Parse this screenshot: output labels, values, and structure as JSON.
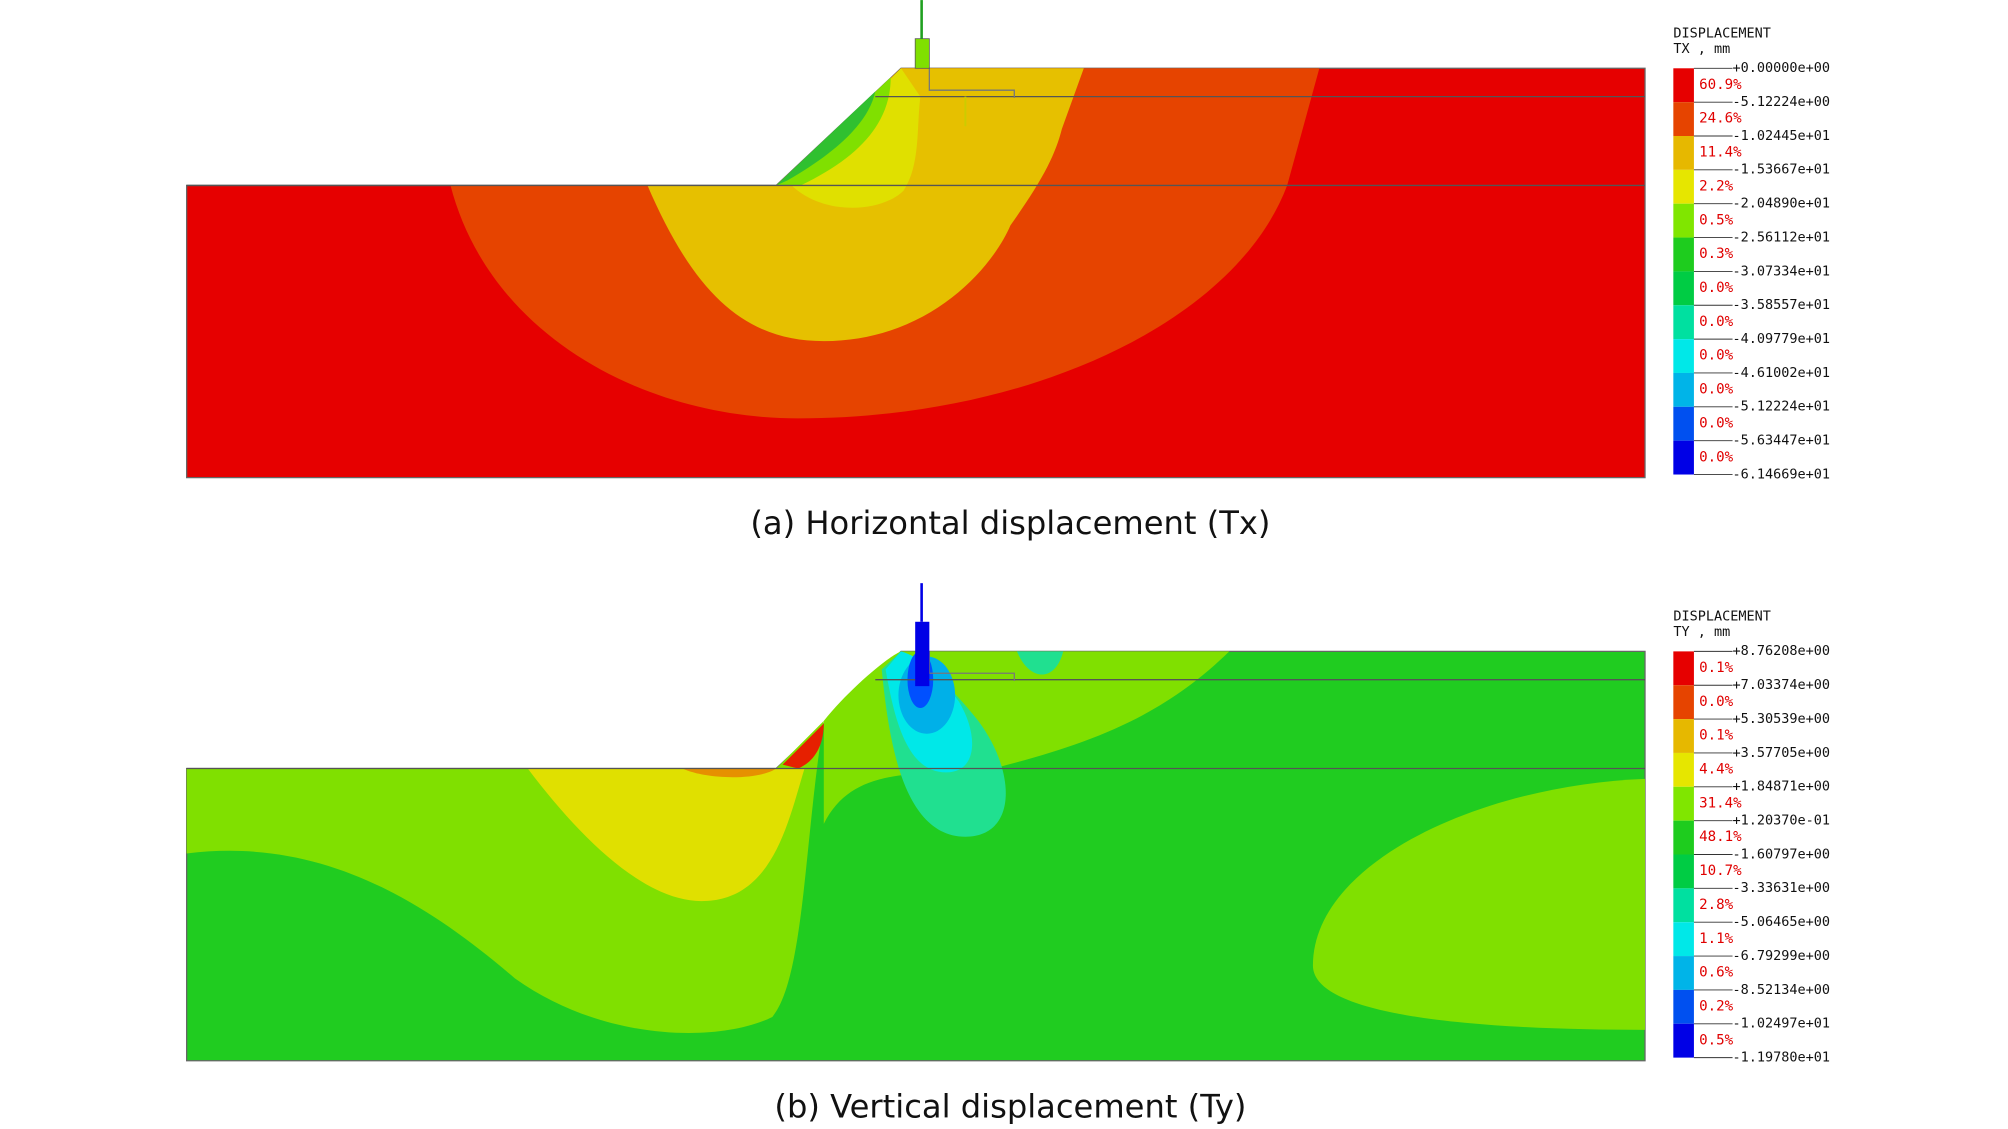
{
  "panels": [
    {
      "caption": "(a) Horizontal displacement (Tx)",
      "legend": {
        "title": "DISPLACEMENT",
        "unit": "TX , mm",
        "labels": [
          "+0.00000e+00",
          "-5.12224e+00",
          "-1.02445e+01",
          "-1.53667e+01",
          "-2.04890e+01",
          "-2.56112e+01",
          "-3.07334e+01",
          "-3.58557e+01",
          "-4.09779e+01",
          "-4.61002e+01",
          "-5.12224e+01",
          "-5.63447e+01",
          "-6.14669e+01"
        ],
        "percentages": [
          "60.9%",
          "24.6%",
          "11.4%",
          "2.2%",
          "0.5%",
          "0.3%",
          "0.0%",
          "0.0%",
          "0.0%",
          "0.0%",
          "0.0%",
          "0.0%"
        ]
      }
    },
    {
      "caption": "(b) Vertical displacement (Ty)",
      "legend": {
        "title": "DISPLACEMENT",
        "unit": "TY , mm",
        "labels": [
          "+8.76208e+00",
          "+7.03374e+00",
          "+5.30539e+00",
          "+3.57705e+00",
          "+1.84871e+00",
          "+1.20370e-01",
          "-1.60797e+00",
          "-3.33631e+00",
          "-5.06465e+00",
          "-6.79299e+00",
          "-8.52134e+00",
          "-1.02497e+01",
          "-1.19780e+01"
        ],
        "percentages": [
          "0.1%",
          "0.0%",
          "0.1%",
          "4.4%",
          "31.4%",
          "48.1%",
          "10.7%",
          "2.8%",
          "1.1%",
          "0.6%",
          "0.2%",
          "0.5%"
        ]
      }
    }
  ]
}
